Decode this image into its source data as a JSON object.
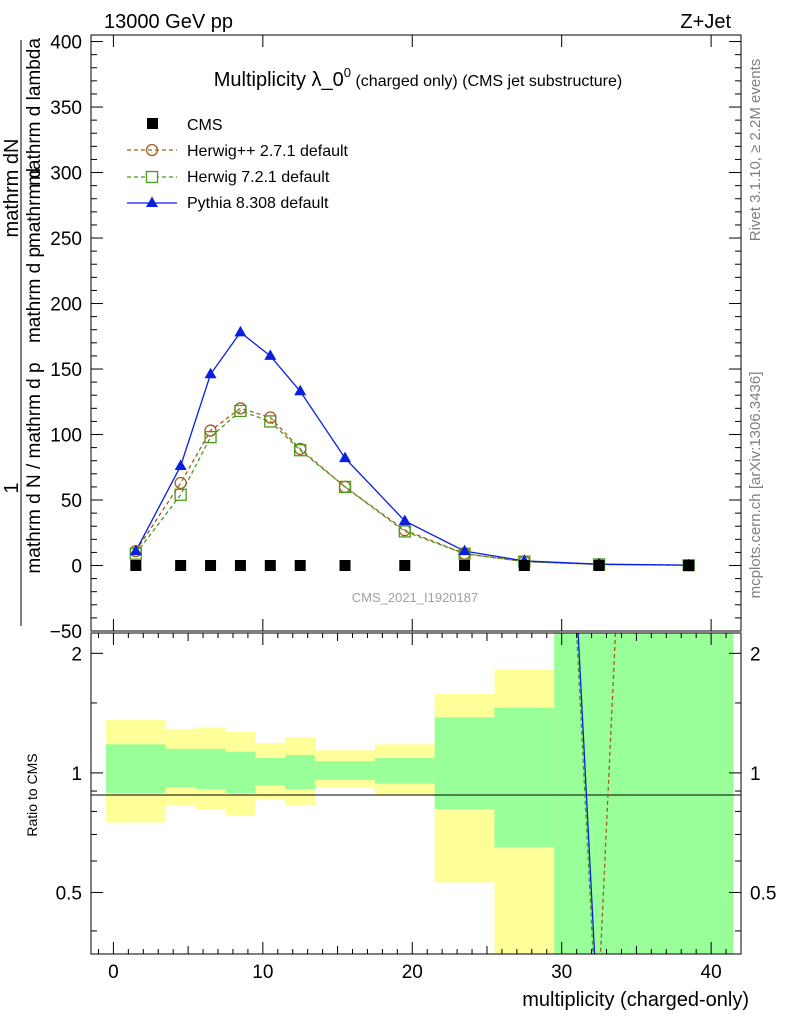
{
  "header": {
    "left": "13000 GeV pp",
    "right": "Z+Jet"
  },
  "side_labels": {
    "rivet": "Rivet 3.1.10, ≥ 2.2M events",
    "mcplots": "mcplots.cern.ch [arXiv:1306.3436]"
  },
  "watermark": "CMS_2021_I1920187",
  "chart_data": [
    {
      "type": "line",
      "title_main": "Multiplicity λ_0",
      "title_sup": "0",
      "title_rest": " (charged only) (CMS jet substructure)",
      "ylabel_numerator": "mathrm dN",
      "ylabel_one": "1",
      "ylabel_part1": "mathrm d N / mathrm d p",
      "ylabel_part2": "mathrm d p",
      "ylabel_part3": "mathrm d lambda",
      "ylabel_part4": "mathrm d",
      "xlim": [
        -1.5,
        42
      ],
      "ylim": [
        -50,
        405
      ],
      "yticks": [
        "−50",
        "0",
        "50",
        "100",
        "150",
        "200",
        "250",
        "300",
        "350",
        "400"
      ],
      "legend_position": "top-left",
      "series": [
        {
          "name": "CMS",
          "color": "#000000",
          "marker": "square-filled",
          "x": [
            1.5,
            4.5,
            6.5,
            8.5,
            10.5,
            12.5,
            15.5,
            19.5,
            23.5,
            27.5,
            32.5,
            38.5
          ],
          "y": [
            0,
            0,
            0,
            0,
            0,
            0,
            0,
            0,
            0,
            0,
            0,
            0
          ]
        },
        {
          "name": "Herwig++ 2.7.1 default",
          "color": "#a65b1b",
          "marker": "circle-open",
          "dash": true,
          "x": [
            1.5,
            4.5,
            6.5,
            8.5,
            10.5,
            12.5,
            15.5,
            19.5,
            23.5,
            27.5,
            32.5,
            38.5
          ],
          "y": [
            11,
            63,
            103,
            120,
            113,
            89,
            60,
            27,
            9,
            3,
            0.8,
            0.2
          ]
        },
        {
          "name": "Herwig 7.2.1 default",
          "color": "#4c9a1d",
          "marker": "square-open",
          "dash": true,
          "x": [
            1.5,
            4.5,
            6.5,
            8.5,
            10.5,
            12.5,
            15.5,
            19.5,
            23.5,
            27.5,
            32.5,
            38.5
          ],
          "y": [
            9,
            54,
            98,
            118,
            110,
            88,
            60,
            26,
            9,
            3,
            0.8,
            0.2
          ]
        },
        {
          "name": "Pythia 8.308 default",
          "color": "#0a1fe0",
          "marker": "triangle-filled",
          "dash": false,
          "x": [
            1.5,
            4.5,
            6.5,
            8.5,
            10.5,
            12.5,
            15.5,
            19.5,
            23.5,
            27.5,
            32.5,
            38.5
          ],
          "y": [
            11,
            76,
            146,
            178,
            160,
            133,
            82,
            34,
            11,
            3.5,
            1.0,
            0.3
          ]
        }
      ]
    },
    {
      "type": "area",
      "ylabel": "Ratio to CMS",
      "xlabel": "multiplicity (charged-only)",
      "xlim": [
        -1.5,
        42
      ],
      "ylim": [
        0.35,
        2.25
      ],
      "xticks": [
        "0",
        "10",
        "20",
        "30",
        "40"
      ],
      "yticks": [
        "0.5",
        "1",
        "2"
      ],
      "reference_line": 1,
      "bands": {
        "bins": [
          [
            -0.5,
            3.5
          ],
          [
            3.5,
            5.5
          ],
          [
            5.5,
            7.5
          ],
          [
            7.5,
            9.5
          ],
          [
            9.5,
            11.5
          ],
          [
            11.5,
            13.5
          ],
          [
            13.5,
            17.5
          ],
          [
            17.5,
            21.5
          ],
          [
            21.5,
            25.5
          ],
          [
            25.5,
            29.5
          ],
          [
            29.5,
            41.5
          ]
        ],
        "outer_color": "#ffff99",
        "inner_color": "#99ff99",
        "outer_low": [
          0.75,
          0.83,
          0.81,
          0.78,
          0.86,
          0.83,
          0.92,
          0.88,
          0.53,
          0.35,
          0.35
        ],
        "outer_high": [
          1.36,
          1.29,
          1.3,
          1.27,
          1.19,
          1.23,
          1.14,
          1.18,
          1.58,
          1.82,
          2.25
        ],
        "inner_low": [
          0.89,
          0.92,
          0.91,
          0.89,
          0.93,
          0.91,
          0.96,
          0.94,
          0.81,
          0.65,
          0.35
        ],
        "inner_high": [
          1.18,
          1.15,
          1.15,
          1.13,
          1.09,
          1.11,
          1.07,
          1.09,
          1.38,
          1.46,
          2.25
        ]
      },
      "series": [
        {
          "name": "Pythia 8.308 default",
          "color": "#0a1fe0",
          "dash": false,
          "x": [
            31.1,
            32.2
          ],
          "y": [
            2.25,
            0.35
          ]
        },
        {
          "name": "Herwig 7.2.1 default",
          "color": "#4c9a1d",
          "dash": true,
          "x": [
            31.0,
            32.1
          ],
          "y": [
            2.25,
            0.35
          ]
        },
        {
          "name": "Herwig++ 2.7.1 default",
          "color": "#a65b1b",
          "dash": true,
          "x": [
            33.6,
            32.6
          ],
          "y": [
            2.25,
            0.35
          ]
        }
      ]
    }
  ]
}
